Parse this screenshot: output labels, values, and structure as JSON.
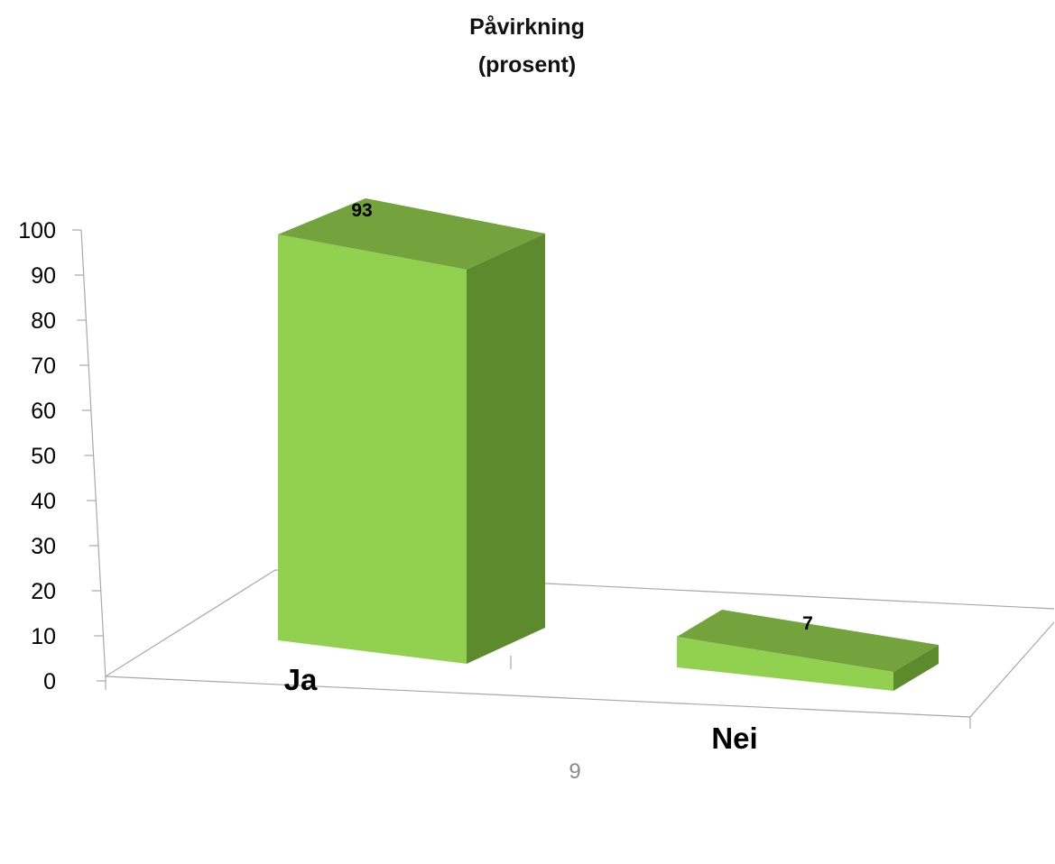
{
  "chart_data": {
    "type": "bar",
    "title": [
      "Påvirkning",
      "(prosent)"
    ],
    "categories": [
      "Ja",
      "Nei"
    ],
    "values": [
      93,
      7
    ],
    "data_labels": [
      "93",
      "7"
    ],
    "y_ticks": [
      "0",
      "10",
      "20",
      "30",
      "40",
      "50",
      "60",
      "70",
      "80",
      "90",
      "100"
    ],
    "ylim": [
      0,
      100
    ],
    "grid": false,
    "legend": "none",
    "style": "3d",
    "colors": {
      "bar_front": "#92D050",
      "bar_side": "#5E8A2E",
      "bar_top": "#74A33E",
      "axis": "#a8a8a8",
      "text": "#000000"
    }
  },
  "footer": {
    "page_number": "9"
  }
}
